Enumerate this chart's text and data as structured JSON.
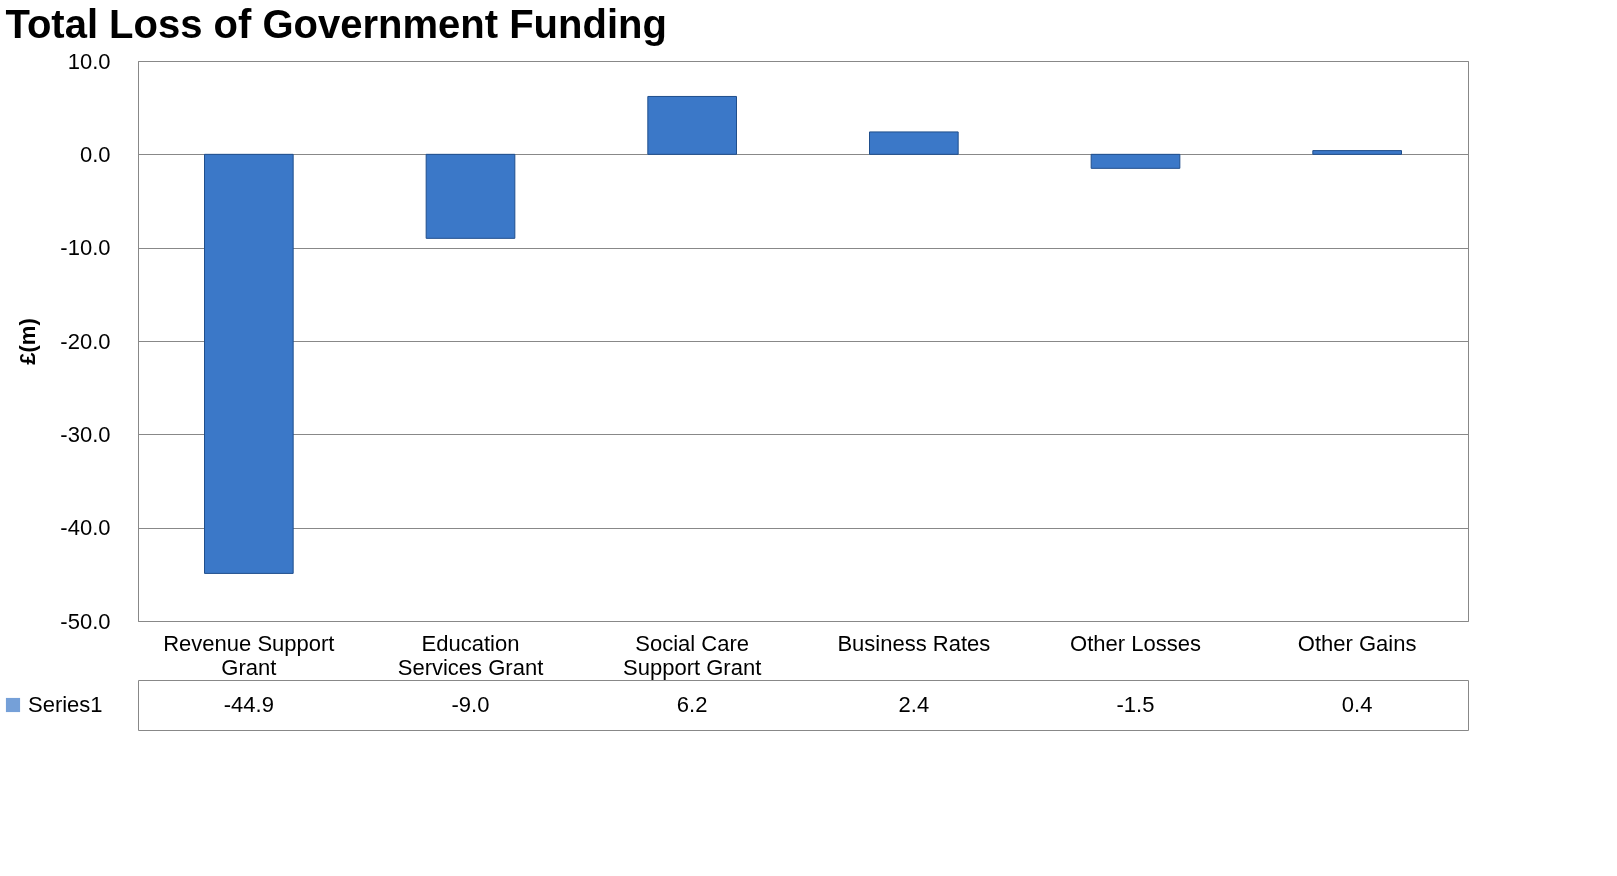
{
  "chart_data": {
    "type": "bar",
    "title": "Total Loss of Government Funding",
    "ylabel": "£(m)",
    "categories": [
      "Revenue Support Grant",
      "Education Services Grant",
      "Social Care Support Grant",
      "Business Rates",
      "Other Losses",
      "Other Gains"
    ],
    "series": [
      {
        "name": "Series1",
        "color": "#3b78c8",
        "values": [
          -44.9,
          -9.0,
          6.2,
          2.4,
          -1.5,
          0.4
        ],
        "value_labels": [
          "-44.9",
          "-9.0",
          "6.2",
          "2.4",
          "-1.5",
          "0.4"
        ]
      }
    ],
    "ylim": [
      -50,
      10
    ],
    "yticks": [
      {
        "value": -50,
        "label": "-50.0"
      },
      {
        "value": -40,
        "label": "-40.0"
      },
      {
        "value": -30,
        "label": "-30.0"
      },
      {
        "value": -20,
        "label": "-20.0"
      },
      {
        "value": -10,
        "label": "-10.0"
      },
      {
        "value": 0,
        "label": "0.0"
      },
      {
        "value": 10,
        "label": "10.0"
      }
    ],
    "grid": "y",
    "legend": "bottom left"
  }
}
